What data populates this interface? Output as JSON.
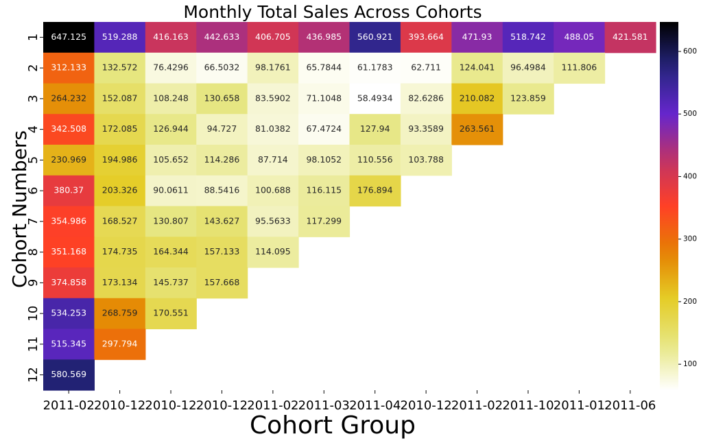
{
  "chart_data": {
    "type": "heatmap",
    "title": "Monthly Total Sales Across Cohorts",
    "xlabel": "Cohort Group",
    "ylabel": "Cohort Numbers",
    "x_tick_labels": [
      "2011-02",
      "2010-12",
      "2010-12",
      "2010-12",
      "2011-02",
      "2011-03",
      "2011-04",
      "2010-12",
      "2011-02",
      "2011-10",
      "2011-01",
      "2011-06"
    ],
    "y_tick_labels": [
      "1",
      "2",
      "3",
      "4",
      "5",
      "6",
      "7",
      "8",
      "9",
      "10",
      "11",
      "12"
    ],
    "colormap": "CMRmap_r",
    "vmin": 58.4934,
    "vmax": 647.125,
    "colorbar_ticks": [
      100,
      200,
      300,
      400,
      500,
      600
    ],
    "colorbar_tick_labels": [
      "100",
      "200",
      "300",
      "400",
      "500",
      "600"
    ],
    "rows": [
      [
        "647.125",
        "519.288",
        "416.163",
        "442.633",
        "406.705",
        "436.985",
        "560.921",
        "393.664",
        "471.93",
        "518.742",
        "488.05",
        "421.581"
      ],
      [
        "312.133",
        "132.572",
        "76.4296",
        "66.5032",
        "98.1761",
        "65.7844",
        "61.1783",
        "62.711",
        "124.041",
        "96.4984",
        "111.806"
      ],
      [
        "264.232",
        "152.087",
        "108.248",
        "130.658",
        "83.5902",
        "71.1048",
        "58.4934",
        "82.6286",
        "210.082",
        "123.859"
      ],
      [
        "342.508",
        "172.085",
        "126.944",
        "94.727",
        "81.0382",
        "67.4724",
        "127.94",
        "93.3589",
        "263.561"
      ],
      [
        "230.969",
        "194.986",
        "105.652",
        "114.286",
        "87.714",
        "98.1052",
        "110.556",
        "103.788"
      ],
      [
        "380.37",
        "203.326",
        "90.0611",
        "88.5416",
        "100.688",
        "116.115",
        "176.894"
      ],
      [
        "354.986",
        "168.527",
        "130.807",
        "143.627",
        "95.5633",
        "117.299"
      ],
      [
        "351.168",
        "174.735",
        "164.344",
        "157.133",
        "114.095"
      ],
      [
        "374.858",
        "173.134",
        "145.737",
        "157.668"
      ],
      [
        "534.253",
        "268.759",
        "170.551"
      ],
      [
        "515.345",
        "297.794"
      ],
      [
        "580.569"
      ]
    ]
  }
}
